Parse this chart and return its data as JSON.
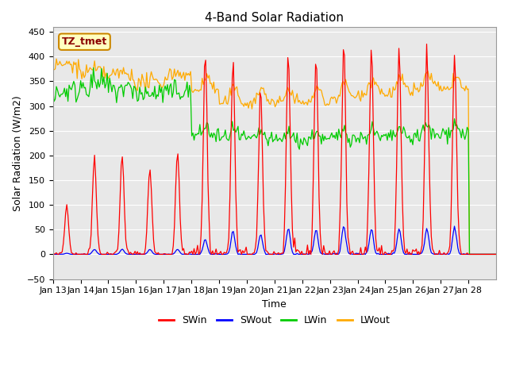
{
  "title": "4-Band Solar Radiation",
  "ylabel": "Solar Radiation (W/m2)",
  "xlabel": "Time",
  "tz_label": "TZ_tmet",
  "ylim": [
    -50,
    460
  ],
  "plot_bg_color": "#e8e8e8",
  "legend_entries": [
    "SWin",
    "SWout",
    "LWin",
    "LWout"
  ],
  "legend_colors": [
    "#ff0000",
    "#0000ff",
    "#00cc00",
    "#ffaa00"
  ],
  "x_tick_labels": [
    "Jan 13",
    "Jan 14",
    "Jan 15",
    "Jan 16",
    "Jan 17",
    "Jan 18",
    "Jan 19",
    "Jan 20",
    "Jan 21",
    "Jan 22",
    "Jan 23",
    "Jan 24",
    "Jan 25",
    "Jan 26",
    "Jan 27",
    "Jan 28"
  ],
  "n_days": 16,
  "hours_per_day": 24,
  "yticks": [
    -50,
    0,
    50,
    100,
    150,
    200,
    250,
    300,
    350,
    400,
    450
  ]
}
